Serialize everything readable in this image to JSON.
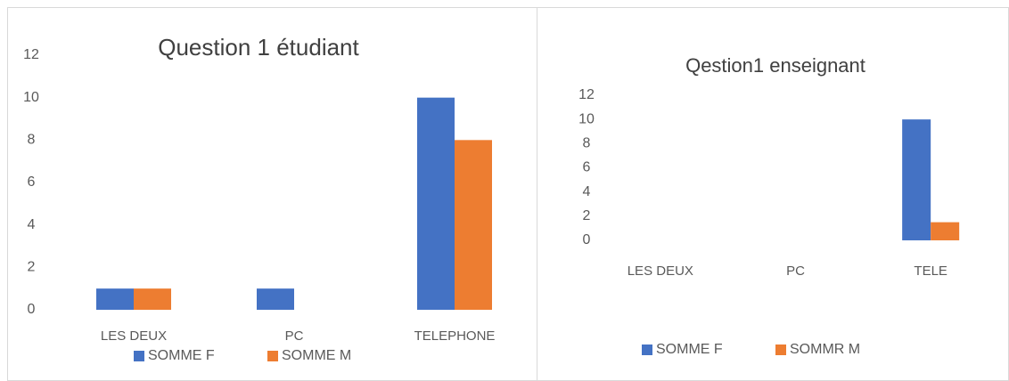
{
  "chart_data": [
    {
      "type": "bar",
      "title": "Question 1 étudiant",
      "categories": [
        "LES DEUX",
        "PC",
        "TELEPHONE"
      ],
      "series": [
        {
          "name": "SOMME F",
          "color": "#4472c4",
          "values": [
            1,
            1,
            10
          ]
        },
        {
          "name": "SOMME M",
          "color": "#ed7d31",
          "values": [
            1,
            0,
            8
          ]
        }
      ],
      "ylim": [
        0,
        12
      ],
      "yticks": [
        0,
        2,
        4,
        6,
        8,
        10,
        12
      ],
      "grid": false,
      "legend": "bottom"
    },
    {
      "type": "bar",
      "title": "Qestion1 enseignant",
      "categories": [
        "LES DEUX",
        "PC",
        "TELE"
      ],
      "series": [
        {
          "name": "SOMME F",
          "color": "#4472c4",
          "values": [
            0,
            0,
            10
          ]
        },
        {
          "name": "SOMMR M",
          "color": "#ed7d31",
          "values": [
            0,
            0,
            1.5
          ]
        }
      ],
      "ylim": [
        0,
        12
      ],
      "yticks": [
        0,
        2,
        4,
        6,
        8,
        10,
        12
      ],
      "grid": false,
      "legend": "bottom"
    }
  ]
}
